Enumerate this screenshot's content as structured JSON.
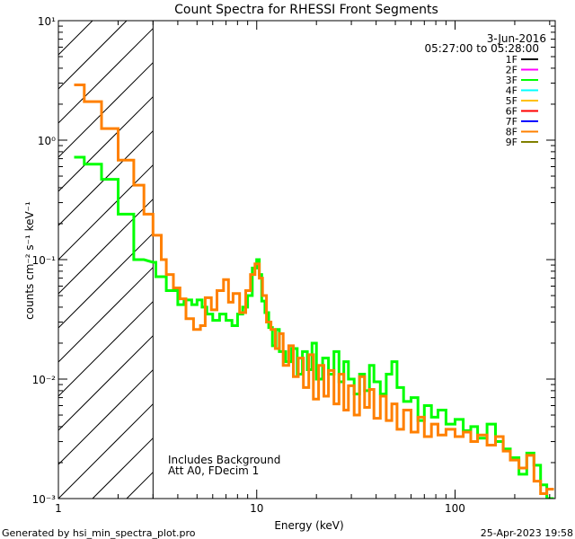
{
  "chart_data": {
    "type": "line",
    "title": "Count Spectra for RHESSI Front Segments",
    "xlabel": "Energy (keV)",
    "ylabel": "counts cm⁻² s⁻¹ keV⁻¹",
    "xscale": "log",
    "yscale": "log",
    "xlim": [
      1,
      320
    ],
    "ylim": [
      0.001,
      10
    ],
    "x_ticks": [
      {
        "value": 1,
        "label": "1"
      },
      {
        "value": 10,
        "label": "10"
      },
      {
        "value": 100,
        "label": "100"
      }
    ],
    "y_ticks": [
      {
        "value": 10,
        "label": "10¹"
      },
      {
        "value": 1,
        "label": "10⁰"
      },
      {
        "value": 0.1,
        "label": "10⁻¹"
      },
      {
        "value": 0.01,
        "label": "10⁻²"
      },
      {
        "value": 0.001,
        "label": "10⁻³"
      }
    ],
    "date": "3-Jun-2016",
    "time_range": "05:27:00 to 05:28:00",
    "legend": [
      {
        "name": "1F",
        "color": "#000000"
      },
      {
        "name": "2F",
        "color": "#ff00ff"
      },
      {
        "name": "3F",
        "color": "#00ff00"
      },
      {
        "name": "4F",
        "color": "#00ffff"
      },
      {
        "name": "5F",
        "color": "#ffc000"
      },
      {
        "name": "6F",
        "color": "#ff0000"
      },
      {
        "name": "7F",
        "color": "#0000ff"
      },
      {
        "name": "8F",
        "color": "#ff8000"
      },
      {
        "name": "9F",
        "color": "#808000"
      }
    ],
    "threshold_energy": 3,
    "notes": [
      "Includes Background",
      "Att A0, FDecim 1"
    ],
    "series": [
      {
        "name": "3F",
        "color": "#00ff00",
        "points": [
          [
            1.2,
            0.72
          ],
          [
            1.35,
            0.72
          ],
          [
            1.35,
            0.63
          ],
          [
            1.65,
            0.63
          ],
          [
            1.65,
            0.47
          ],
          [
            2.0,
            0.47
          ],
          [
            2.0,
            0.24
          ],
          [
            2.4,
            0.24
          ],
          [
            2.4,
            0.15
          ],
          [
            2.4,
            0.15
          ],
          [
            2.4,
            0.1
          ],
          [
            2.7,
            0.1
          ],
          [
            2.7,
            0.1
          ],
          [
            3.0,
            0.095
          ],
          [
            3.0,
            0.095
          ],
          [
            3.1,
            0.095
          ],
          [
            3.1,
            0.072
          ],
          [
            3.5,
            0.072
          ],
          [
            3.5,
            0.055
          ],
          [
            4.0,
            0.055
          ],
          [
            4.0,
            0.042
          ],
          [
            4.3,
            0.042
          ],
          [
            4.3,
            0.046
          ],
          [
            4.7,
            0.046
          ],
          [
            4.7,
            0.042
          ],
          [
            5.0,
            0.042
          ],
          [
            5.0,
            0.046
          ],
          [
            5.3,
            0.046
          ],
          [
            5.3,
            0.04
          ],
          [
            5.6,
            0.04
          ],
          [
            5.6,
            0.035
          ],
          [
            6.0,
            0.035
          ],
          [
            6.0,
            0.031
          ],
          [
            6.5,
            0.031
          ],
          [
            6.5,
            0.035
          ],
          [
            7.0,
            0.035
          ],
          [
            7.0,
            0.031
          ],
          [
            7.5,
            0.031
          ],
          [
            7.5,
            0.028
          ],
          [
            8.0,
            0.028
          ],
          [
            8.0,
            0.035
          ],
          [
            8.5,
            0.035
          ],
          [
            8.5,
            0.04
          ],
          [
            9.0,
            0.04
          ],
          [
            9.0,
            0.05
          ],
          [
            9.5,
            0.05
          ],
          [
            9.5,
            0.085
          ],
          [
            10.0,
            0.085
          ],
          [
            10.0,
            0.1
          ],
          [
            10.3,
            0.1
          ],
          [
            10.3,
            0.075
          ],
          [
            10.6,
            0.075
          ],
          [
            10.6,
            0.045
          ],
          [
            11.0,
            0.045
          ],
          [
            11.0,
            0.036
          ],
          [
            11.5,
            0.036
          ],
          [
            11.5,
            0.027
          ],
          [
            12.0,
            0.027
          ],
          [
            12.0,
            0.019
          ],
          [
            12.5,
            0.019
          ],
          [
            12.5,
            0.026
          ],
          [
            13.0,
            0.026
          ],
          [
            13.0,
            0.017
          ],
          [
            14.0,
            0.017
          ],
          [
            14.0,
            0.014
          ],
          [
            15.0,
            0.014
          ],
          [
            15.0,
            0.018
          ],
          [
            16.0,
            0.018
          ],
          [
            16.0,
            0.011
          ],
          [
            17.0,
            0.011
          ],
          [
            17.0,
            0.017
          ],
          [
            18.0,
            0.017
          ],
          [
            18.0,
            0.012
          ],
          [
            19.0,
            0.012
          ],
          [
            19.0,
            0.02
          ],
          [
            20.0,
            0.02
          ],
          [
            20.0,
            0.01
          ],
          [
            21.5,
            0.01
          ],
          [
            21.5,
            0.015
          ],
          [
            23.0,
            0.015
          ],
          [
            23.0,
            0.011
          ],
          [
            24.5,
            0.011
          ],
          [
            24.5,
            0.017
          ],
          [
            26.0,
            0.017
          ],
          [
            26.0,
            0.0095
          ],
          [
            27.5,
            0.0095
          ],
          [
            27.5,
            0.014
          ],
          [
            29.0,
            0.014
          ],
          [
            29.0,
            0.01
          ],
          [
            31.0,
            0.01
          ],
          [
            31.0,
            0.0075
          ],
          [
            33.0,
            0.0075
          ],
          [
            33.0,
            0.011
          ],
          [
            35.0,
            0.011
          ],
          [
            35.0,
            0.008
          ],
          [
            37.0,
            0.008
          ],
          [
            37.0,
            0.013
          ],
          [
            39.0,
            0.013
          ],
          [
            39.0,
            0.0095
          ],
          [
            42.0,
            0.0095
          ],
          [
            42.0,
            0.0075
          ],
          [
            45.0,
            0.0075
          ],
          [
            45.0,
            0.011
          ],
          [
            48.0,
            0.011
          ],
          [
            48.0,
            0.014
          ],
          [
            51.0,
            0.014
          ],
          [
            51.0,
            0.0085
          ],
          [
            55.0,
            0.0085
          ],
          [
            55.0,
            0.0065
          ],
          [
            60.0,
            0.0065
          ],
          [
            60.0,
            0.007
          ],
          [
            65.0,
            0.007
          ],
          [
            65.0,
            0.0045
          ],
          [
            70.0,
            0.0045
          ],
          [
            70.0,
            0.006
          ],
          [
            76.0,
            0.006
          ],
          [
            76.0,
            0.0048
          ],
          [
            82.0,
            0.0048
          ],
          [
            82.0,
            0.0055
          ],
          [
            90.0,
            0.0055
          ],
          [
            90.0,
            0.0042
          ],
          [
            100.0,
            0.0042
          ],
          [
            100.0,
            0.0046
          ],
          [
            110.0,
            0.0046
          ],
          [
            110.0,
            0.0037
          ],
          [
            120.0,
            0.0037
          ],
          [
            120.0,
            0.004
          ],
          [
            130.0,
            0.004
          ],
          [
            130.0,
            0.0032
          ],
          [
            145.0,
            0.0032
          ],
          [
            145.0,
            0.0042
          ],
          [
            160.0,
            0.0042
          ],
          [
            160.0,
            0.003
          ],
          [
            175.0,
            0.003
          ],
          [
            175.0,
            0.0026
          ],
          [
            190.0,
            0.0026
          ],
          [
            190.0,
            0.0022
          ],
          [
            210.0,
            0.0022
          ],
          [
            210.0,
            0.0016
          ],
          [
            230.0,
            0.0016
          ],
          [
            230.0,
            0.0024
          ],
          [
            250.0,
            0.0024
          ],
          [
            250.0,
            0.0019
          ],
          [
            270.0,
            0.0019
          ],
          [
            270.0,
            0.0013
          ],
          [
            290.0,
            0.0013
          ],
          [
            290.0,
            0.001
          ],
          [
            315.0,
            0.001
          ]
        ]
      },
      {
        "name": "8F",
        "color": "#ff8000",
        "points": [
          [
            1.2,
            2.9
          ],
          [
            1.35,
            2.9
          ],
          [
            1.35,
            2.1
          ],
          [
            1.65,
            2.1
          ],
          [
            1.65,
            1.25
          ],
          [
            2.0,
            1.25
          ],
          [
            2.0,
            0.68
          ],
          [
            2.4,
            0.68
          ],
          [
            2.4,
            0.42
          ],
          [
            2.7,
            0.42
          ],
          [
            2.7,
            0.24
          ],
          [
            3.0,
            0.24
          ],
          [
            3.0,
            0.16
          ],
          [
            3.3,
            0.16
          ],
          [
            3.3,
            0.1
          ],
          [
            3.5,
            0.1
          ],
          [
            3.5,
            0.075
          ],
          [
            3.8,
            0.075
          ],
          [
            3.8,
            0.058
          ],
          [
            4.1,
            0.058
          ],
          [
            4.1,
            0.047
          ],
          [
            4.4,
            0.047
          ],
          [
            4.4,
            0.032
          ],
          [
            4.8,
            0.032
          ],
          [
            4.8,
            0.026
          ],
          [
            5.2,
            0.026
          ],
          [
            5.2,
            0.028
          ],
          [
            5.5,
            0.028
          ],
          [
            5.5,
            0.048
          ],
          [
            5.9,
            0.048
          ],
          [
            5.9,
            0.038
          ],
          [
            6.3,
            0.038
          ],
          [
            6.3,
            0.055
          ],
          [
            6.8,
            0.055
          ],
          [
            6.8,
            0.068
          ],
          [
            7.2,
            0.068
          ],
          [
            7.2,
            0.044
          ],
          [
            7.6,
            0.044
          ],
          [
            7.6,
            0.052
          ],
          [
            8.2,
            0.052
          ],
          [
            8.2,
            0.036
          ],
          [
            8.8,
            0.036
          ],
          [
            8.8,
            0.055
          ],
          [
            9.3,
            0.055
          ],
          [
            9.3,
            0.075
          ],
          [
            9.8,
            0.075
          ],
          [
            9.8,
            0.092
          ],
          [
            10.3,
            0.092
          ],
          [
            10.3,
            0.07
          ],
          [
            10.7,
            0.07
          ],
          [
            10.7,
            0.05
          ],
          [
            11.2,
            0.05
          ],
          [
            11.2,
            0.03
          ],
          [
            11.8,
            0.03
          ],
          [
            11.8,
            0.026
          ],
          [
            12.4,
            0.026
          ],
          [
            12.4,
            0.018
          ],
          [
            13.0,
            0.018
          ],
          [
            13.0,
            0.024
          ],
          [
            13.6,
            0.024
          ],
          [
            13.6,
            0.013
          ],
          [
            14.5,
            0.013
          ],
          [
            14.5,
            0.019
          ],
          [
            15.3,
            0.019
          ],
          [
            15.3,
            0.0105
          ],
          [
            16.2,
            0.0105
          ],
          [
            16.2,
            0.015
          ],
          [
            17.2,
            0.015
          ],
          [
            17.2,
            0.0085
          ],
          [
            18.3,
            0.0085
          ],
          [
            18.3,
            0.016
          ],
          [
            19.3,
            0.016
          ],
          [
            19.3,
            0.0068
          ],
          [
            20.5,
            0.0068
          ],
          [
            20.5,
            0.013
          ],
          [
            21.8,
            0.013
          ],
          [
            21.8,
            0.0072
          ],
          [
            23.0,
            0.0072
          ],
          [
            23.0,
            0.0118
          ],
          [
            24.5,
            0.0118
          ],
          [
            24.5,
            0.0062
          ],
          [
            26.0,
            0.0062
          ],
          [
            26.0,
            0.011
          ],
          [
            27.5,
            0.011
          ],
          [
            27.5,
            0.0055
          ],
          [
            29.0,
            0.0055
          ],
          [
            29.0,
            0.0088
          ],
          [
            31.0,
            0.0088
          ],
          [
            31.0,
            0.005
          ],
          [
            33.0,
            0.005
          ],
          [
            33.0,
            0.0105
          ],
          [
            35.0,
            0.0105
          ],
          [
            35.0,
            0.0058
          ],
          [
            37.0,
            0.0058
          ],
          [
            37.0,
            0.0082
          ],
          [
            39.0,
            0.0082
          ],
          [
            39.0,
            0.0047
          ],
          [
            42.0,
            0.0047
          ],
          [
            42.0,
            0.0072
          ],
          [
            45.0,
            0.0072
          ],
          [
            45.0,
            0.0045
          ],
          [
            48.0,
            0.0045
          ],
          [
            48.0,
            0.0062
          ],
          [
            51.0,
            0.0062
          ],
          [
            51.0,
            0.0038
          ],
          [
            55.0,
            0.0038
          ],
          [
            55.0,
            0.0055
          ],
          [
            60.0,
            0.0055
          ],
          [
            60.0,
            0.0036
          ],
          [
            65.0,
            0.0036
          ],
          [
            65.0,
            0.0048
          ],
          [
            70.0,
            0.0048
          ],
          [
            70.0,
            0.0033
          ],
          [
            76.0,
            0.0033
          ],
          [
            76.0,
            0.0042
          ],
          [
            82.0,
            0.0042
          ],
          [
            82.0,
            0.0034
          ],
          [
            90.0,
            0.0034
          ],
          [
            90.0,
            0.0038
          ],
          [
            100.0,
            0.0038
          ],
          [
            100.0,
            0.0033
          ],
          [
            110.0,
            0.0033
          ],
          [
            110.0,
            0.0036
          ],
          [
            120.0,
            0.0036
          ],
          [
            120.0,
            0.003
          ],
          [
            130.0,
            0.003
          ],
          [
            130.0,
            0.0034
          ],
          [
            145.0,
            0.0034
          ],
          [
            145.0,
            0.0028
          ],
          [
            160.0,
            0.0028
          ],
          [
            160.0,
            0.0033
          ],
          [
            175.0,
            0.0033
          ],
          [
            175.0,
            0.0025
          ],
          [
            190.0,
            0.0025
          ],
          [
            190.0,
            0.0021
          ],
          [
            210.0,
            0.0021
          ],
          [
            210.0,
            0.0018
          ],
          [
            230.0,
            0.0018
          ],
          [
            230.0,
            0.0023
          ],
          [
            250.0,
            0.0023
          ],
          [
            250.0,
            0.0014
          ],
          [
            270.0,
            0.0014
          ],
          [
            270.0,
            0.0011
          ],
          [
            290.0,
            0.0011
          ],
          [
            290.0,
            0.0012
          ],
          [
            315.0,
            0.0012
          ]
        ]
      }
    ]
  },
  "footer": {
    "generated_by": "Generated by hsi_min_spectra_plot.pro",
    "timestamp": "25-Apr-2023 19:58"
  }
}
